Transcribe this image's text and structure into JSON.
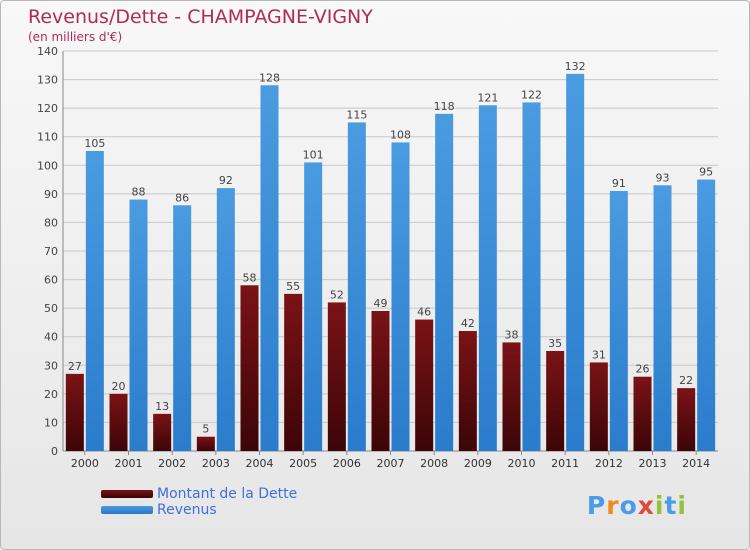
{
  "chart_title": "Revenus/Dette - CHAMPAGNE-VIGNY",
  "chart_subtitle": "(en milliers d'€)",
  "logo_text": "Proxiti",
  "colors": {
    "dette": "#7a1316",
    "revenus": "#4a9be0",
    "grid": "#c8c8c8",
    "title": "#b02a5c"
  },
  "chart_data": {
    "type": "bar",
    "title": "Revenus/Dette - CHAMPAGNE-VIGNY",
    "subtitle": "(en milliers d'€)",
    "categories": [
      "2000",
      "2001",
      "2002",
      "2003",
      "2004",
      "2005",
      "2006",
      "2007",
      "2008",
      "2009",
      "2010",
      "2011",
      "2012",
      "2013",
      "2014"
    ],
    "series": [
      {
        "name": "Montant de la Dette",
        "values": [
          27,
          20,
          13,
          5,
          58,
          55,
          52,
          49,
          46,
          42,
          38,
          35,
          31,
          26,
          22
        ]
      },
      {
        "name": "Revenus",
        "values": [
          105,
          88,
          86,
          92,
          128,
          101,
          115,
          108,
          118,
          121,
          122,
          132,
          91,
          93,
          95
        ]
      }
    ],
    "ylim": [
      0,
      140
    ],
    "yticks": [
      0,
      10,
      20,
      30,
      40,
      50,
      60,
      70,
      80,
      90,
      100,
      110,
      120,
      130,
      140
    ],
    "grid": true,
    "legend_position": "bottom-left"
  }
}
